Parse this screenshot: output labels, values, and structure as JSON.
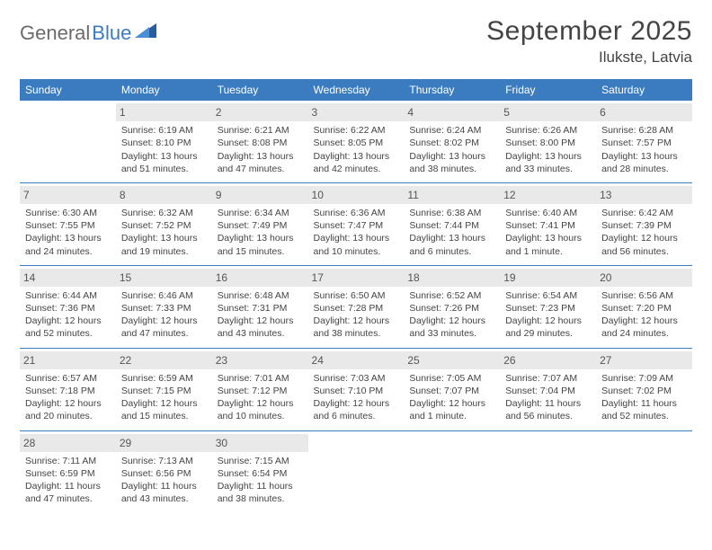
{
  "logo": {
    "text_gray": "General",
    "text_blue": "Blue"
  },
  "title": "September 2025",
  "location": "Ilukste, Latvia",
  "colors": {
    "header_bg": "#3b7bbf",
    "header_fg": "#ffffff",
    "daynum_bg": "#e9e9e9",
    "rule": "#3b7bbf",
    "text": "#444444",
    "logo_gray": "#6b6b6b",
    "logo_blue": "#3b7bbf"
  },
  "weekdays": [
    "Sunday",
    "Monday",
    "Tuesday",
    "Wednesday",
    "Thursday",
    "Friday",
    "Saturday"
  ],
  "weeks": [
    [
      {
        "n": "",
        "sr": "",
        "ss": "",
        "dl": ""
      },
      {
        "n": "1",
        "sr": "Sunrise: 6:19 AM",
        "ss": "Sunset: 8:10 PM",
        "dl": "Daylight: 13 hours and 51 minutes."
      },
      {
        "n": "2",
        "sr": "Sunrise: 6:21 AM",
        "ss": "Sunset: 8:08 PM",
        "dl": "Daylight: 13 hours and 47 minutes."
      },
      {
        "n": "3",
        "sr": "Sunrise: 6:22 AM",
        "ss": "Sunset: 8:05 PM",
        "dl": "Daylight: 13 hours and 42 minutes."
      },
      {
        "n": "4",
        "sr": "Sunrise: 6:24 AM",
        "ss": "Sunset: 8:02 PM",
        "dl": "Daylight: 13 hours and 38 minutes."
      },
      {
        "n": "5",
        "sr": "Sunrise: 6:26 AM",
        "ss": "Sunset: 8:00 PM",
        "dl": "Daylight: 13 hours and 33 minutes."
      },
      {
        "n": "6",
        "sr": "Sunrise: 6:28 AM",
        "ss": "Sunset: 7:57 PM",
        "dl": "Daylight: 13 hours and 28 minutes."
      }
    ],
    [
      {
        "n": "7",
        "sr": "Sunrise: 6:30 AM",
        "ss": "Sunset: 7:55 PM",
        "dl": "Daylight: 13 hours and 24 minutes."
      },
      {
        "n": "8",
        "sr": "Sunrise: 6:32 AM",
        "ss": "Sunset: 7:52 PM",
        "dl": "Daylight: 13 hours and 19 minutes."
      },
      {
        "n": "9",
        "sr": "Sunrise: 6:34 AM",
        "ss": "Sunset: 7:49 PM",
        "dl": "Daylight: 13 hours and 15 minutes."
      },
      {
        "n": "10",
        "sr": "Sunrise: 6:36 AM",
        "ss": "Sunset: 7:47 PM",
        "dl": "Daylight: 13 hours and 10 minutes."
      },
      {
        "n": "11",
        "sr": "Sunrise: 6:38 AM",
        "ss": "Sunset: 7:44 PM",
        "dl": "Daylight: 13 hours and 6 minutes."
      },
      {
        "n": "12",
        "sr": "Sunrise: 6:40 AM",
        "ss": "Sunset: 7:41 PM",
        "dl": "Daylight: 13 hours and 1 minute."
      },
      {
        "n": "13",
        "sr": "Sunrise: 6:42 AM",
        "ss": "Sunset: 7:39 PM",
        "dl": "Daylight: 12 hours and 56 minutes."
      }
    ],
    [
      {
        "n": "14",
        "sr": "Sunrise: 6:44 AM",
        "ss": "Sunset: 7:36 PM",
        "dl": "Daylight: 12 hours and 52 minutes."
      },
      {
        "n": "15",
        "sr": "Sunrise: 6:46 AM",
        "ss": "Sunset: 7:33 PM",
        "dl": "Daylight: 12 hours and 47 minutes."
      },
      {
        "n": "16",
        "sr": "Sunrise: 6:48 AM",
        "ss": "Sunset: 7:31 PM",
        "dl": "Daylight: 12 hours and 43 minutes."
      },
      {
        "n": "17",
        "sr": "Sunrise: 6:50 AM",
        "ss": "Sunset: 7:28 PM",
        "dl": "Daylight: 12 hours and 38 minutes."
      },
      {
        "n": "18",
        "sr": "Sunrise: 6:52 AM",
        "ss": "Sunset: 7:26 PM",
        "dl": "Daylight: 12 hours and 33 minutes."
      },
      {
        "n": "19",
        "sr": "Sunrise: 6:54 AM",
        "ss": "Sunset: 7:23 PM",
        "dl": "Daylight: 12 hours and 29 minutes."
      },
      {
        "n": "20",
        "sr": "Sunrise: 6:56 AM",
        "ss": "Sunset: 7:20 PM",
        "dl": "Daylight: 12 hours and 24 minutes."
      }
    ],
    [
      {
        "n": "21",
        "sr": "Sunrise: 6:57 AM",
        "ss": "Sunset: 7:18 PM",
        "dl": "Daylight: 12 hours and 20 minutes."
      },
      {
        "n": "22",
        "sr": "Sunrise: 6:59 AM",
        "ss": "Sunset: 7:15 PM",
        "dl": "Daylight: 12 hours and 15 minutes."
      },
      {
        "n": "23",
        "sr": "Sunrise: 7:01 AM",
        "ss": "Sunset: 7:12 PM",
        "dl": "Daylight: 12 hours and 10 minutes."
      },
      {
        "n": "24",
        "sr": "Sunrise: 7:03 AM",
        "ss": "Sunset: 7:10 PM",
        "dl": "Daylight: 12 hours and 6 minutes."
      },
      {
        "n": "25",
        "sr": "Sunrise: 7:05 AM",
        "ss": "Sunset: 7:07 PM",
        "dl": "Daylight: 12 hours and 1 minute."
      },
      {
        "n": "26",
        "sr": "Sunrise: 7:07 AM",
        "ss": "Sunset: 7:04 PM",
        "dl": "Daylight: 11 hours and 56 minutes."
      },
      {
        "n": "27",
        "sr": "Sunrise: 7:09 AM",
        "ss": "Sunset: 7:02 PM",
        "dl": "Daylight: 11 hours and 52 minutes."
      }
    ],
    [
      {
        "n": "28",
        "sr": "Sunrise: 7:11 AM",
        "ss": "Sunset: 6:59 PM",
        "dl": "Daylight: 11 hours and 47 minutes."
      },
      {
        "n": "29",
        "sr": "Sunrise: 7:13 AM",
        "ss": "Sunset: 6:56 PM",
        "dl": "Daylight: 11 hours and 43 minutes."
      },
      {
        "n": "30",
        "sr": "Sunrise: 7:15 AM",
        "ss": "Sunset: 6:54 PM",
        "dl": "Daylight: 11 hours and 38 minutes."
      },
      {
        "n": "",
        "sr": "",
        "ss": "",
        "dl": ""
      },
      {
        "n": "",
        "sr": "",
        "ss": "",
        "dl": ""
      },
      {
        "n": "",
        "sr": "",
        "ss": "",
        "dl": ""
      },
      {
        "n": "",
        "sr": "",
        "ss": "",
        "dl": ""
      }
    ]
  ]
}
